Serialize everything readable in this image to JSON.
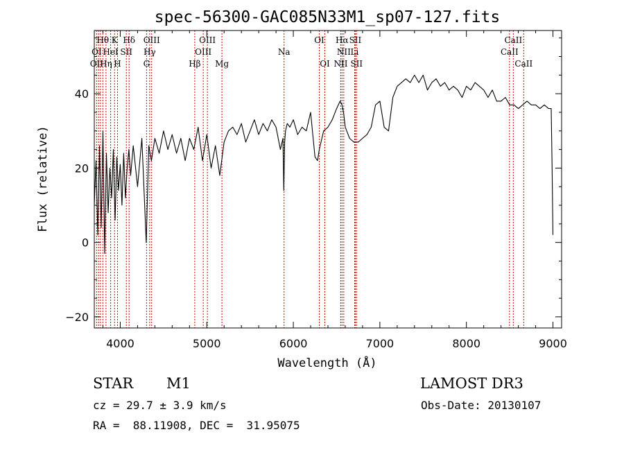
{
  "chart_data": {
    "type": "line",
    "title": "spec-56300-GAC085N33M1_sp07-127.fits",
    "xlabel": "Wavelength (Å)",
    "ylabel": "Flux (relative)",
    "xlim": [
      3700,
      9100
    ],
    "ylim": [
      -23,
      57
    ],
    "xticks": [
      4000,
      5000,
      6000,
      7000,
      8000,
      9000
    ],
    "yticks": [
      -20,
      0,
      20,
      40
    ],
    "series": [
      {
        "name": "flux",
        "x": [
          3700,
          3720,
          3740,
          3760,
          3780,
          3800,
          3820,
          3840,
          3860,
          3880,
          3900,
          3920,
          3940,
          3960,
          3980,
          4000,
          4020,
          4040,
          4060,
          4080,
          4100,
          4120,
          4150,
          4200,
          4250,
          4300,
          4330,
          4360,
          4400,
          4450,
          4500,
          4550,
          4600,
          4650,
          4700,
          4750,
          4800,
          4850,
          4900,
          4950,
          5000,
          5050,
          5100,
          5150,
          5200,
          5250,
          5300,
          5350,
          5400,
          5450,
          5500,
          5550,
          5600,
          5650,
          5700,
          5750,
          5800,
          5850,
          5880,
          5890,
          5900,
          5910,
          5930,
          5960,
          6000,
          6050,
          6100,
          6150,
          6200,
          6250,
          6280,
          6300,
          6350,
          6400,
          6450,
          6500,
          6540,
          6563,
          6580,
          6600,
          6650,
          6700,
          6750,
          6800,
          6850,
          6900,
          6950,
          7000,
          7050,
          7100,
          7150,
          7200,
          7250,
          7300,
          7350,
          7400,
          7450,
          7500,
          7550,
          7600,
          7650,
          7700,
          7750,
          7800,
          7850,
          7900,
          7950,
          8000,
          8050,
          8100,
          8150,
          8200,
          8250,
          8300,
          8350,
          8400,
          8450,
          8500,
          8550,
          8600,
          8650,
          8700,
          8750,
          8800,
          8850,
          8900,
          8950,
          8980,
          8990,
          9000
        ],
        "values": [
          10,
          22,
          2,
          26,
          4,
          30,
          -3,
          24,
          8,
          20,
          12,
          25,
          6,
          23,
          14,
          21,
          10,
          24,
          12,
          20,
          25,
          18,
          26,
          15,
          28,
          0,
          26,
          22,
          28,
          24,
          30,
          25,
          29,
          24,
          28,
          22,
          28,
          25,
          31,
          22,
          29,
          20,
          26,
          18,
          27,
          30,
          31,
          29,
          32,
          27,
          30,
          33,
          29,
          32,
          30,
          33,
          31,
          25,
          28,
          14,
          27,
          30,
          32,
          31,
          33,
          29,
          31,
          30,
          35,
          23,
          22,
          25,
          30,
          31,
          33,
          36,
          38,
          37,
          35,
          31,
          28,
          27,
          27,
          28,
          29,
          31,
          37,
          38,
          31,
          30,
          39,
          42,
          43,
          44,
          43,
          45,
          43,
          45,
          41,
          43,
          44,
          42,
          43,
          41,
          42,
          41,
          39,
          42,
          41,
          43,
          42,
          41,
          39,
          41,
          38,
          38,
          39,
          37,
          37,
          36,
          37,
          38,
          37,
          37,
          36,
          37,
          36,
          36,
          20,
          2
        ]
      }
    ],
    "line_labels": [
      {
        "label": "Hθ",
        "wave": 3798,
        "row": 1
      },
      {
        "label": "K",
        "wave": 3934,
        "row": 1
      },
      {
        "label": "Hδ",
        "wave": 4102,
        "row": 1
      },
      {
        "label": "OIII",
        "wave": 4363,
        "row": 1
      },
      {
        "label": "OIII",
        "wave": 5007,
        "row": 1
      },
      {
        "label": "OI",
        "wave": 6300,
        "row": 1
      },
      {
        "label": "Hα",
        "wave": 6563,
        "row": 1
      },
      {
        "label": "SII",
        "wave": 6716,
        "row": 1
      },
      {
        "label": "CaII",
        "wave": 8542,
        "row": 1
      },
      {
        "label": "OI",
        "wave": 3727,
        "row": 2
      },
      {
        "label": "HeI",
        "wave": 3889,
        "row": 2
      },
      {
        "label": "SII",
        "wave": 4070,
        "row": 2
      },
      {
        "label": "Hγ",
        "wave": 4340,
        "row": 2
      },
      {
        "label": "OIII",
        "wave": 4959,
        "row": 2
      },
      {
        "label": "Na",
        "wave": 5893,
        "row": 2
      },
      {
        "label": "NII",
        "wave": 6583,
        "row": 2
      },
      {
        "label": "Li",
        "wave": 6708,
        "row": 2
      },
      {
        "label": "CaII",
        "wave": 8498,
        "row": 2
      },
      {
        "label": "OII",
        "wave": 3727,
        "row": 3
      },
      {
        "label": "Hη",
        "wave": 3835,
        "row": 3
      },
      {
        "label": "H",
        "wave": 3968,
        "row": 3
      },
      {
        "label": "G",
        "wave": 4304,
        "row": 3
      },
      {
        "label": "Hβ",
        "wave": 4861,
        "row": 3
      },
      {
        "label": "Mg",
        "wave": 5175,
        "row": 3
      },
      {
        "label": "OI",
        "wave": 6364,
        "row": 3
      },
      {
        "label": "NII",
        "wave": 6548,
        "row": 3
      },
      {
        "label": "SII",
        "wave": 6731,
        "row": 3
      },
      {
        "label": "CaII",
        "wave": 8662,
        "row": 3
      }
    ],
    "line_marker_waves": [
      3727,
      3750,
      3771,
      3798,
      3835,
      3889,
      3934,
      3968,
      4070,
      4102,
      4304,
      4340,
      4363,
      4861,
      4959,
      5007,
      5175,
      5893,
      6300,
      6364,
      6548,
      6563,
      6583,
      6708,
      6716,
      6731,
      8498,
      8542,
      8662
    ],
    "colors": {
      "spectrum": "#000000",
      "lines": "#cc0000",
      "axes": "#000000"
    }
  },
  "info": {
    "class": "STAR",
    "subclass": "M1",
    "survey": "LAMOST DR3",
    "cz": "cz = 29.7 ± 3.9 km/s",
    "obs_date": "Obs-Date: 20130107",
    "coords": "RA =  88.11908, DEC =  31.95075"
  }
}
